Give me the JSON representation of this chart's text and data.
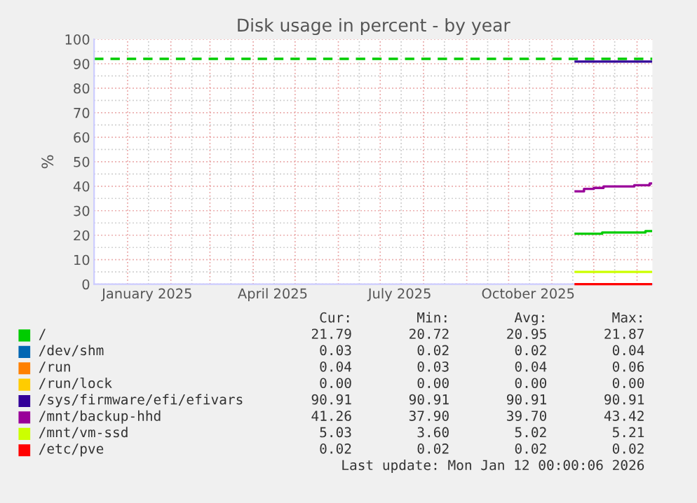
{
  "chart_data": {
    "type": "step",
    "title": "Disk usage in percent - by year",
    "ylabel": "%",
    "xlim": [
      "2024-12-08",
      "2026-01-12"
    ],
    "ylim": [
      0,
      100
    ],
    "yticks": [
      0,
      10,
      20,
      30,
      40,
      50,
      60,
      70,
      80,
      90,
      100
    ],
    "xticks": [
      {
        "value": "2025-01-15",
        "label": "January 2025"
      },
      {
        "value": "2025-04-15",
        "label": "April 2025"
      },
      {
        "value": "2025-07-15",
        "label": "July 2025"
      },
      {
        "value": "2025-10-15",
        "label": "October 2025"
      }
    ],
    "grid": true,
    "legend": "bottom",
    "ref_lines": [
      {
        "axis": "y",
        "value": 92,
        "color": "#00cc00",
        "line_style": "dashed"
      }
    ],
    "series": [
      {
        "name": "/",
        "color": "#00cc00",
        "x": [
          "2025-11-18",
          "2025-12-07",
          "2026-01-07",
          "2026-01-11"
        ],
        "values": [
          20.6,
          21.1,
          21.7,
          21.7
        ]
      },
      {
        "name": "/dev/shm",
        "color": "#0066b3"
      },
      {
        "name": "/run",
        "color": "#ff8000"
      },
      {
        "name": "/run/lock",
        "color": "#ffcc00"
      },
      {
        "name": "/sys/firmware/efi/efivars",
        "color": "#330099",
        "x": [
          "2025-11-18",
          "2026-01-11"
        ],
        "values": [
          90.9,
          90.9
        ]
      },
      {
        "name": "/mnt/backup-hhd",
        "color": "#990099",
        "x": [
          "2025-11-18",
          "2025-11-24",
          "2025-12-01",
          "2025-12-08",
          "2025-12-30",
          "2026-01-10",
          "2026-01-11"
        ],
        "values": [
          37.9,
          38.9,
          39.3,
          39.9,
          40.4,
          41.1,
          41.1
        ]
      },
      {
        "name": "/mnt/vm-ssd",
        "color": "#ccff00",
        "x": [
          "2025-11-18",
          "2026-01-11"
        ],
        "values": [
          5.0,
          5.0
        ]
      },
      {
        "name": "/etc/pve",
        "color": "#ff0000",
        "x": [
          "2025-11-18",
          "2026-01-11"
        ],
        "values": [
          0.0,
          0.0
        ]
      }
    ],
    "annotations": [
      "Cur:",
      "Min:",
      "Avg:",
      "Max:",
      "21.79",
      "20.72",
      "20.95",
      "21.87",
      "0.03",
      "0.02",
      "0.02",
      "0.04",
      "0.04",
      "0.03",
      "0.04",
      "0.06",
      "0.00",
      "0.00",
      "0.00",
      "0.00",
      "90.91",
      "90.91",
      "90.91",
      "90.91",
      "41.26",
      "37.90",
      "39.70",
      "43.42",
      "5.03",
      "3.60",
      "5.02",
      "5.21",
      "0.02",
      "0.02",
      "0.02",
      "0.02",
      "Last update: Mon Jan 12 00:00:06 2026"
    ]
  }
}
